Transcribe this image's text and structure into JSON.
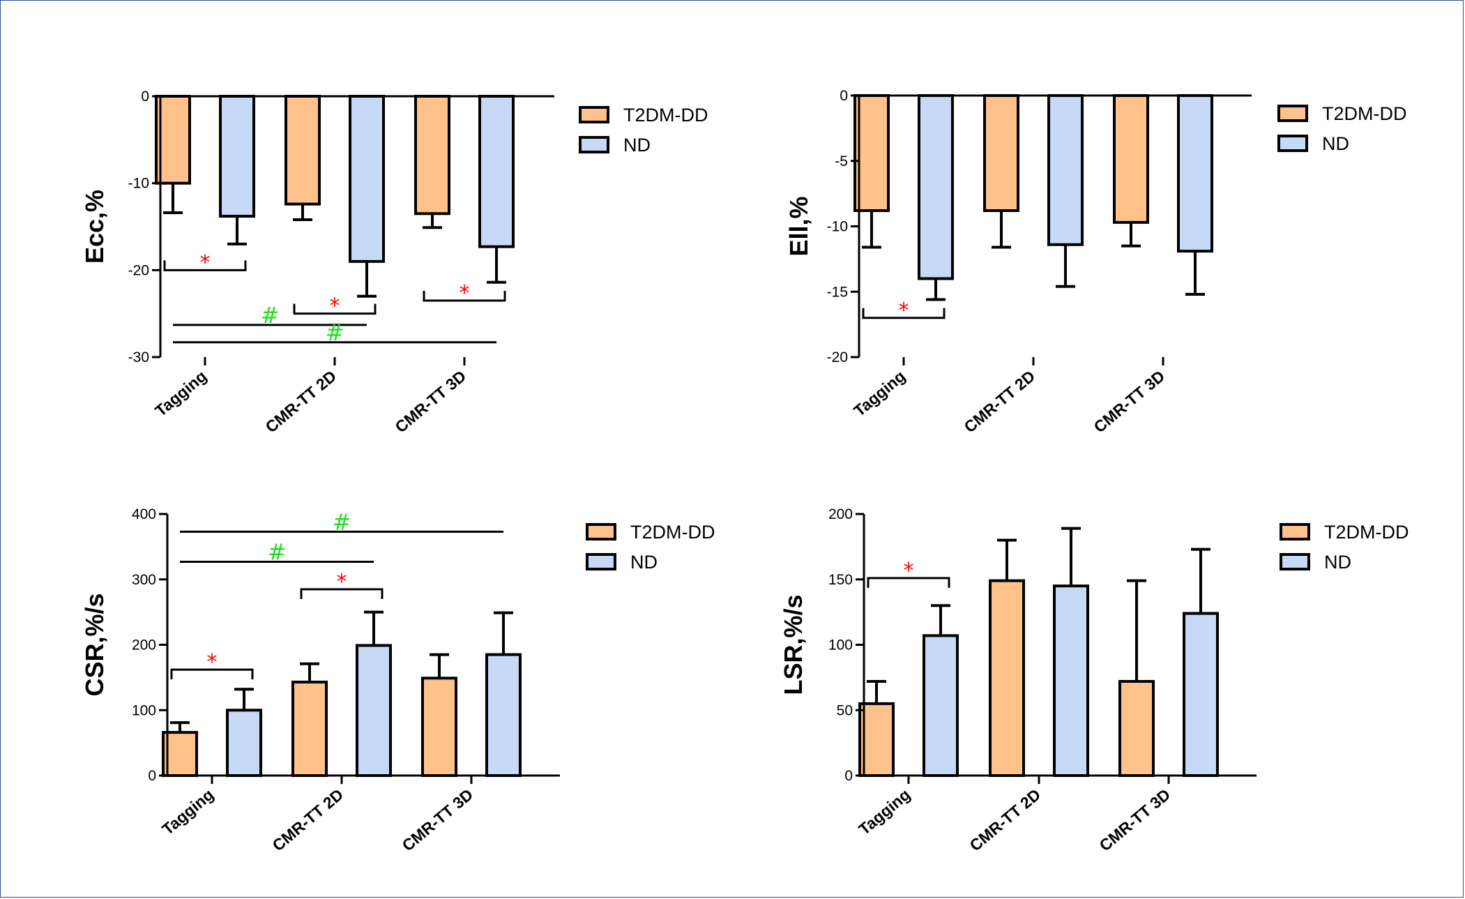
{
  "colors": {
    "t2dm": "#ffc28a",
    "nd": "#c6d9f5",
    "stroke": "#000000",
    "star": "#ff0000",
    "hash": "#22dd22"
  },
  "legend": [
    "T2DM-DD",
    "ND"
  ],
  "chart_data": [
    {
      "type": "bar",
      "ylabel": "Ecc,%",
      "ylim": [
        -30,
        0
      ],
      "yticks": [
        "0",
        "-10",
        "-20",
        "-30"
      ],
      "ytick_values": [
        0,
        -10,
        -20,
        -30
      ],
      "categories": [
        "Tagging",
        "CMR-TT 2D",
        "CMR-TT 3D"
      ],
      "series": [
        {
          "name": "T2DM-DD",
          "values": [
            -10.0,
            -12.4,
            -13.5
          ],
          "errors": [
            3.4,
            1.8,
            1.6
          ]
        },
        {
          "name": "ND",
          "values": [
            -13.8,
            -19.0,
            -17.3
          ],
          "errors": [
            3.2,
            4.0,
            4.1
          ]
        }
      ],
      "annotations": [
        {
          "kind": "bracket",
          "symbol": "*",
          "from_cat": 0,
          "to_cat": 0,
          "y": -20.0
        },
        {
          "kind": "bracket",
          "symbol": "*",
          "from_cat": 1,
          "to_cat": 1,
          "y": -25.0
        },
        {
          "kind": "bracket",
          "symbol": "*",
          "from_cat": 2,
          "to_cat": 2,
          "y": -23.5
        },
        {
          "kind": "line",
          "symbol": "#",
          "from_cat": 0,
          "to_cat": 1,
          "y": -26.3
        },
        {
          "kind": "line",
          "symbol": "#",
          "from_cat": 0,
          "to_cat": 2,
          "y": -28.3
        }
      ]
    },
    {
      "type": "bar",
      "ylabel": "Ell,%",
      "ylim": [
        -20,
        0
      ],
      "yticks": [
        "0",
        "-5",
        "-10",
        "-15",
        "-20"
      ],
      "ytick_values": [
        0,
        -5,
        -10,
        -15,
        -20
      ],
      "categories": [
        "Tagging",
        "CMR-TT 2D",
        "CMR-TT 3D"
      ],
      "series": [
        {
          "name": "T2DM-DD",
          "values": [
            -8.8,
            -8.8,
            -9.7
          ],
          "errors": [
            2.8,
            2.8,
            1.8
          ]
        },
        {
          "name": "ND",
          "values": [
            -14.0,
            -11.4,
            -11.9
          ],
          "errors": [
            1.6,
            3.2,
            3.3
          ]
        }
      ],
      "annotations": [
        {
          "kind": "bracket",
          "symbol": "*",
          "from_cat": 0,
          "to_cat": 0,
          "y": -17.0
        }
      ]
    },
    {
      "type": "bar",
      "ylabel": "CSR,%/s",
      "ylim": [
        0,
        400
      ],
      "yticks": [
        "0",
        "100",
        "200",
        "300",
        "400"
      ],
      "ytick_values": [
        0,
        100,
        200,
        300,
        400
      ],
      "categories": [
        "Tagging",
        "CMR-TT 2D",
        "CMR-TT 3D"
      ],
      "series": [
        {
          "name": "T2DM-DD",
          "values": [
            66,
            143,
            149
          ],
          "errors": [
            15,
            28,
            36
          ]
        },
        {
          "name": "ND",
          "values": [
            100,
            199,
            185
          ],
          "errors": [
            32,
            51,
            64
          ]
        }
      ],
      "annotations": [
        {
          "kind": "bracket",
          "symbol": "*",
          "from_cat": 0,
          "to_cat": 0,
          "y": 162
        },
        {
          "kind": "bracket",
          "symbol": "*",
          "from_cat": 1,
          "to_cat": 1,
          "y": 285
        },
        {
          "kind": "line",
          "symbol": "#",
          "from_cat": 0,
          "to_cat": 1,
          "y": 327
        },
        {
          "kind": "line",
          "symbol": "#",
          "from_cat": 0,
          "to_cat": 2,
          "y": 373
        }
      ]
    },
    {
      "type": "bar",
      "ylabel": "LSR,%/s",
      "ylim": [
        0,
        200
      ],
      "yticks": [
        "0",
        "50",
        "100",
        "150",
        "200"
      ],
      "ytick_values": [
        0,
        50,
        100,
        150,
        200
      ],
      "categories": [
        "Tagging",
        "CMR-TT 2D",
        "CMR-TT 3D"
      ],
      "series": [
        {
          "name": "T2DM-DD",
          "values": [
            55,
            149,
            72
          ],
          "errors": [
            17,
            31,
            77
          ]
        },
        {
          "name": "ND",
          "values": [
            107,
            145,
            124
          ],
          "errors": [
            23,
            44,
            49
          ]
        }
      ],
      "annotations": [
        {
          "kind": "bracket",
          "symbol": "*",
          "from_cat": 0,
          "to_cat": 0,
          "y": 151
        }
      ]
    }
  ]
}
